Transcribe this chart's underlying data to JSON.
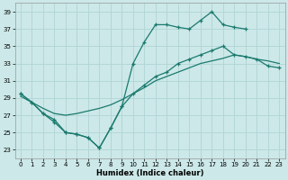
{
  "xlabel": "Humidex (Indice chaleur)",
  "bg_color": "#cce8e8",
  "grid_color": "#b0d4d4",
  "line_color": "#1a7a6e",
  "ylim": [
    22.0,
    40.0
  ],
  "xlim": [
    -0.5,
    23.5
  ],
  "yticks": [
    23,
    25,
    27,
    29,
    31,
    33,
    35,
    37,
    39
  ],
  "xticks": [
    0,
    1,
    2,
    3,
    4,
    5,
    6,
    7,
    8,
    9,
    10,
    11,
    12,
    13,
    14,
    15,
    16,
    17,
    18,
    19,
    20,
    21,
    22,
    23
  ],
  "line1_x": [
    0,
    1,
    2,
    3,
    4,
    5,
    6,
    7,
    8,
    9,
    10,
    11,
    12,
    13,
    14,
    15,
    16,
    17,
    18,
    19,
    20
  ],
  "line1_y": [
    29.5,
    28.5,
    27.2,
    26.2,
    25.0,
    24.8,
    24.4,
    23.2,
    25.5,
    28.0,
    33.0,
    35.5,
    37.5,
    37.5,
    37.2,
    37.0,
    38.0,
    39.0,
    37.5,
    37.2,
    37.0
  ],
  "line2_x": [
    0,
    1,
    2,
    3,
    4,
    5,
    6,
    7,
    8,
    9,
    10,
    11,
    12,
    13,
    14,
    15,
    16,
    17,
    18,
    19,
    20,
    21,
    22,
    23
  ],
  "line2_y": [
    29.2,
    28.5,
    27.8,
    27.2,
    27.0,
    27.2,
    27.5,
    27.8,
    28.2,
    28.8,
    29.5,
    30.2,
    31.0,
    31.5,
    32.0,
    32.5,
    33.0,
    33.3,
    33.6,
    34.0,
    33.8,
    33.5,
    33.3,
    33.0
  ],
  "line3_x": [
    0,
    1,
    2,
    3,
    4,
    5,
    6,
    7,
    8,
    9,
    10,
    11,
    12,
    13,
    14,
    15,
    16,
    17,
    18,
    19,
    20,
    21,
    22,
    23
  ],
  "line3_y": [
    29.5,
    28.5,
    27.2,
    26.5,
    25.0,
    24.8,
    24.4,
    23.2,
    25.5,
    28.0,
    29.5,
    30.5,
    31.5,
    32.0,
    33.0,
    33.5,
    34.0,
    34.5,
    35.0,
    34.0,
    33.8,
    33.5,
    32.7,
    32.5
  ]
}
